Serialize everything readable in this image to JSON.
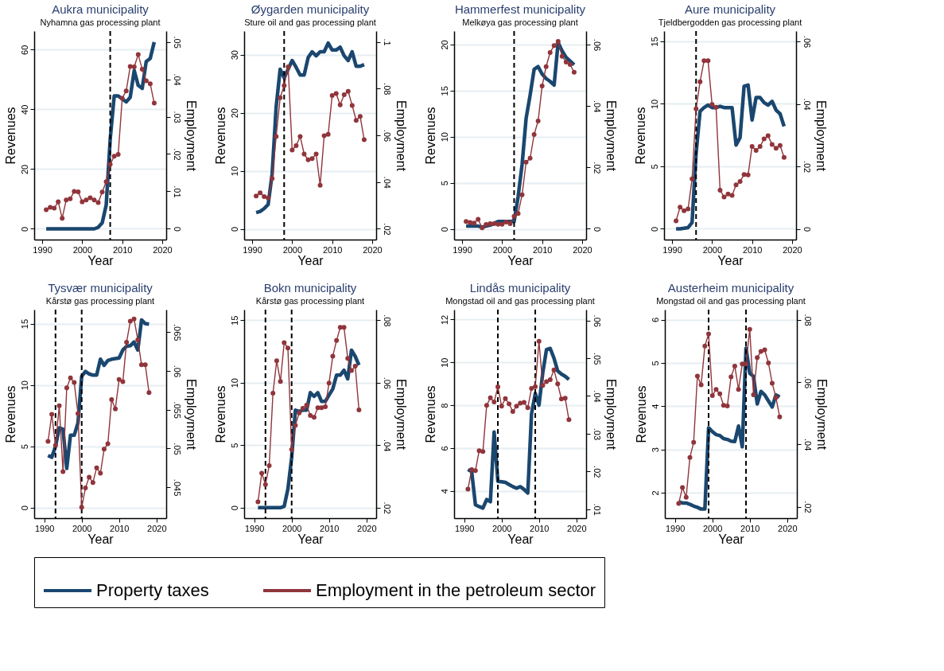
{
  "chart_data": [
    {
      "type": "line",
      "title": "Aukra municipality",
      "subtitle": "Nyhamna gas processing plant",
      "xlabel": "Year",
      "ylabel": "Revenues",
      "y2label": "Employment",
      "x": [
        1991,
        1992,
        1993,
        1994,
        1995,
        1996,
        1997,
        1998,
        1999,
        2000,
        2001,
        2002,
        2003,
        2004,
        2005,
        2006,
        2007,
        2008,
        2009,
        2010,
        2011,
        2012,
        2013,
        2014,
        2015,
        2016,
        2017,
        2018
      ],
      "xlim": [
        1988,
        2021
      ],
      "xticks": [
        1990,
        2000,
        2010,
        2020
      ],
      "ylim": [
        -3.6,
        66.2
      ],
      "yticks": [
        0,
        20,
        40,
        60
      ],
      "y2lim": [
        -0.0029,
        0.0529
      ],
      "y2ticks": [
        0,
        {
          "value": 0.01,
          "label": ".01"
        },
        {
          "value": 0.02,
          "label": ".02"
        },
        {
          "value": 0.03,
          "label": ".03"
        },
        {
          "value": 0.04,
          "label": ".04"
        },
        {
          "value": 0.05,
          "label": ".05"
        }
      ],
      "grid": "y",
      "legend": "bottom",
      "ref_lines": [
        {
          "axis": "x",
          "value": 2007,
          "line_style": "dashed"
        }
      ],
      "series": [
        {
          "name": "Property taxes",
          "color": "#1a476f",
          "marker": "none",
          "values": [
            0,
            0,
            0,
            0,
            0,
            0,
            0,
            0,
            0,
            0,
            0,
            0,
            0,
            0.5,
            2,
            8,
            30,
            44.5,
            44.5,
            43.5,
            42.5,
            44,
            53,
            48,
            47,
            56,
            57,
            62.5
          ]
        },
        {
          "name": "Employment in the petroleum sector",
          "color": "#90353b",
          "marker": "circle",
          "axis": "y2",
          "values": [
            0.0051,
            0.0057,
            0.0055,
            0.0072,
            0.0028,
            0.0077,
            0.008,
            0.01,
            0.0099,
            0.0072,
            0.0077,
            0.0083,
            0.0077,
            0.007,
            0.0098,
            0.0126,
            0.0172,
            0.0194,
            0.0199,
            0.0349,
            0.0369,
            0.0434,
            0.0433,
            0.0466,
            0.0427,
            0.0396,
            0.0388,
            0.0336
          ]
        }
      ]
    },
    {
      "type": "line",
      "title": "Øygarden municipality",
      "subtitle": "Sture oil and gas processing plant",
      "xlabel": "Year",
      "ylabel": "Revenues",
      "y2label": "Employment",
      "x": [
        1991,
        1992,
        1993,
        1994,
        1995,
        1996,
        1997,
        1998,
        1999,
        2000,
        2001,
        2002,
        2003,
        2004,
        2005,
        2006,
        2007,
        2008,
        2009,
        2010,
        2011,
        2012,
        2013,
        2014,
        2015,
        2016,
        2017,
        2018
      ],
      "xlim": [
        1988,
        2021
      ],
      "xticks": [
        1990,
        2000,
        2010,
        2020
      ],
      "ylim": [
        -1.85,
        34.07
      ],
      "yticks": [
        0,
        10,
        20,
        30
      ],
      "y2lim": [
        0.0154,
        0.1046
      ],
      "y2ticks": [
        {
          "value": 0.02,
          "label": ".02"
        },
        {
          "value": 0.04,
          "label": ".04"
        },
        {
          "value": 0.06,
          "label": ".06"
        },
        {
          "value": 0.08,
          "label": ".08"
        },
        {
          "value": 0.1,
          "label": ".1"
        }
      ],
      "grid": "y",
      "legend": "bottom",
      "ref_lines": [
        {
          "axis": "x",
          "value": 1998,
          "line_style": "dashed"
        }
      ],
      "series": [
        {
          "name": "Property taxes",
          "color": "#1a476f",
          "marker": "none",
          "values": [
            2.8,
            3.0,
            3.5,
            4.2,
            9.5,
            21,
            27.5,
            26,
            27.5,
            29,
            27.8,
            26.5,
            26.5,
            29.5,
            30.5,
            29.8,
            30.5,
            30.5,
            32,
            30.8,
            30.8,
            31.3,
            29.8,
            29,
            30.5,
            28,
            28,
            28.3
          ]
        },
        {
          "name": "Employment in the petroleum sector",
          "color": "#90353b",
          "marker": "circle",
          "axis": "y2",
          "values": [
            0.034,
            0.0354,
            0.0338,
            0.0332,
            0.0415,
            0.0595,
            0.0761,
            0.0813,
            0.0893,
            0.0537,
            0.0556,
            0.0595,
            0.052,
            0.0495,
            0.05,
            0.052,
            0.0386,
            0.0598,
            0.0604,
            0.077,
            0.0779,
            0.073,
            0.0774,
            0.0788,
            0.0728,
            0.0664,
            0.0681,
            0.0581
          ]
        }
      ]
    },
    {
      "type": "line",
      "title": "Hammerfest municipality",
      "subtitle": "Melkøya gas processing plant",
      "xlabel": "Year",
      "ylabel": "Revenues",
      "y2label": "Employment",
      "x": [
        1991,
        1992,
        1993,
        1994,
        1995,
        1996,
        1997,
        1998,
        1999,
        2000,
        2001,
        2002,
        2003,
        2004,
        2005,
        2006,
        2007,
        2008,
        2009,
        2010,
        2011,
        2012,
        2013,
        2014,
        2015,
        2016,
        2017,
        2018
      ],
      "xlim": [
        1988,
        2021
      ],
      "xticks": [
        1990,
        2000,
        2010,
        2020
      ],
      "ylim": [
        -1.16,
        21.46
      ],
      "yticks": [
        0,
        5,
        10,
        15,
        20
      ],
      "y2lim": [
        -0.0035,
        0.0644
      ],
      "y2ticks": [
        0,
        {
          "value": 0.02,
          "label": ".02"
        },
        {
          "value": 0.04,
          "label": ".04"
        },
        {
          "value": 0.06,
          "label": ".06"
        }
      ],
      "grid": "y",
      "legend": "bottom",
      "ref_lines": [
        {
          "axis": "x",
          "value": 2003,
          "line_style": "dashed"
        }
      ],
      "series": [
        {
          "name": "Property taxes",
          "color": "#1a476f",
          "marker": "none",
          "values": [
            0.3,
            0.3,
            0.3,
            0.3,
            0.2,
            0.3,
            0.4,
            0.6,
            0.8,
            0.8,
            0.8,
            0.8,
            0.8,
            3.5,
            7,
            12,
            14.5,
            17.3,
            17.6,
            16.8,
            16.3,
            16,
            15.6,
            20.2,
            19.3,
            18.6,
            18.2,
            17.8
          ]
        },
        {
          "name": "Employment in the petroleum sector",
          "color": "#90353b",
          "marker": "circle",
          "axis": "y2",
          "values": [
            0.0024,
            0.0021,
            0.0019,
            0.0031,
            0.0003,
            0.0014,
            0.0017,
            0.0017,
            0.0015,
            0.0015,
            0.0022,
            0.0017,
            0.0041,
            0.005,
            0.0111,
            0.0217,
            0.023,
            0.0307,
            0.0351,
            0.0465,
            0.0528,
            0.0574,
            0.0597,
            0.061,
            0.0562,
            0.0543,
            0.0535,
            0.051
          ]
        }
      ]
    },
    {
      "type": "line",
      "title": "Aure municipality",
      "subtitle": "Tjeldbergodden gas processing plant",
      "xlabel": "Year",
      "ylabel": "Revenues",
      "y2label": "Employment",
      "x": [
        1991,
        1992,
        1993,
        1994,
        1995,
        1996,
        1997,
        1998,
        1999,
        2000,
        2001,
        2002,
        2003,
        2004,
        2005,
        2006,
        2007,
        2008,
        2009,
        2010,
        2011,
        2012,
        2013,
        2014,
        2015,
        2016,
        2017,
        2018
      ],
      "xlim": [
        1988,
        2021
      ],
      "xticks": [
        1990,
        2000,
        2010,
        2020
      ],
      "ylim": [
        -0.86,
        15.82
      ],
      "yticks": [
        0,
        5,
        10,
        15
      ],
      "y2lim": [
        -0.0034,
        0.0633
      ],
      "y2ticks": [
        0,
        {
          "value": 0.02,
          "label": ".02"
        },
        {
          "value": 0.04,
          "label": ".04"
        },
        {
          "value": 0.06,
          "label": ".06"
        }
      ],
      "grid": "y",
      "legend": "bottom",
      "ref_lines": [
        {
          "axis": "x",
          "value": 1996,
          "line_style": "dashed"
        }
      ],
      "series": [
        {
          "name": "Property taxes",
          "color": "#1a476f",
          "marker": "none",
          "values": [
            0,
            0,
            0.05,
            0.1,
            0.5,
            6,
            9.4,
            9.7,
            9.9,
            9.7,
            9.7,
            9.8,
            9.7,
            9.7,
            9.7,
            6.7,
            7.3,
            11.4,
            11.5,
            8.7,
            10.5,
            10.5,
            10.1,
            9.9,
            10.2,
            9.5,
            9.2,
            8.2
          ]
        },
        {
          "name": "Employment in the petroleum sector",
          "color": "#90353b",
          "marker": "circle",
          "axis": "y2",
          "values": [
            0.0026,
            0.007,
            0.0058,
            0.0064,
            0.016,
            0.0384,
            0.0471,
            0.0538,
            0.0538,
            0.0398,
            0.0389,
            0.0124,
            0.0102,
            0.0112,
            0.0107,
            0.0141,
            0.0152,
            0.0174,
            0.0173,
            0.0264,
            0.0251,
            0.0264,
            0.0288,
            0.0298,
            0.027,
            0.0258,
            0.0267,
            0.0229
          ]
        }
      ]
    },
    {
      "type": "line",
      "title": "Tysvær municipality",
      "subtitle": "Kårstø gas processing plant",
      "xlabel": "Year",
      "ylabel": "Revenues",
      "y2label": "Employment",
      "x": [
        1991,
        1992,
        1993,
        1994,
        1995,
        1996,
        1997,
        1998,
        1999,
        2000,
        2001,
        2002,
        2003,
        2004,
        2005,
        2006,
        2007,
        2008,
        2009,
        2010,
        2011,
        2012,
        2013,
        2014,
        2015,
        2016,
        2017,
        2018
      ],
      "xlim": [
        1987.3,
        2022.6
      ],
      "xticks": [
        1990,
        2000,
        2010,
        2020
      ],
      "ylim": [
        -0.86,
        16.14
      ],
      "yticks": [
        0,
        5,
        10,
        15
      ],
      "y2lim": [
        0.041,
        0.0679
      ],
      "y2ticks": [
        {
          "value": 0.045,
          "label": ".045"
        },
        {
          "value": 0.05,
          "label": ".05"
        },
        {
          "value": 0.055,
          "label": ".055"
        },
        {
          "value": 0.06,
          "label": ".06"
        },
        {
          "value": 0.065,
          "label": ".065"
        }
      ],
      "grid": "y",
      "legend": "bottom",
      "ref_lines": [
        {
          "axis": "x",
          "value": 1993,
          "line_style": "dashed"
        },
        {
          "axis": "x",
          "value": 2000,
          "line_style": "dashed"
        }
      ],
      "series": [
        {
          "name": "Property taxes",
          "color": "#1a476f",
          "marker": "none",
          "values": [
            4.25,
            4.1,
            5,
            6.5,
            6.4,
            3.2,
            5.9,
            5.9,
            6.9,
            10.7,
            11.1,
            10.9,
            10.8,
            10.8,
            12.1,
            11.6,
            12,
            12.1,
            12.15,
            12.2,
            12.85,
            13.15,
            13.2,
            13.5,
            12.85,
            15.3,
            15,
            14.95
          ]
        },
        {
          "name": "Employment in the petroleum sector",
          "color": "#90353b",
          "marker": "circle",
          "axis": "y2",
          "values": [
            0.0509,
            0.0544,
            0.0504,
            0.0555,
            0.047,
            0.0578,
            0.0591,
            0.0585,
            0.0545,
            0.0424,
            0.0449,
            0.0463,
            0.0456,
            0.0475,
            0.0468,
            0.0499,
            0.0506,
            0.0563,
            0.0551,
            0.0589,
            0.0586,
            0.0637,
            0.0664,
            0.0667,
            0.064,
            0.0608,
            0.0608,
            0.0572
          ]
        }
      ]
    },
    {
      "type": "line",
      "title": "Bokn municipality",
      "subtitle": "Kårstø gas processing plant",
      "xlabel": "Year",
      "ylabel": "Revenues",
      "y2label": "Employment",
      "x": [
        1991,
        1992,
        1993,
        1994,
        1995,
        1996,
        1997,
        1998,
        1999,
        2000,
        2001,
        2002,
        2003,
        2004,
        2005,
        2006,
        2007,
        2008,
        2009,
        2010,
        2011,
        2012,
        2013,
        2014,
        2015,
        2016,
        2017,
        2018
      ],
      "xlim": [
        1987.3,
        2022.6
      ],
      "xticks": [
        1990,
        2000,
        2010,
        2020
      ],
      "ylim": [
        -0.84,
        15.84
      ],
      "yticks": [
        0,
        5,
        10,
        15
      ],
      "y2lim": [
        0.0166,
        0.0834
      ],
      "y2ticks": [
        {
          "value": 0.02,
          "label": ".02"
        },
        {
          "value": 0.04,
          "label": ".04"
        },
        {
          "value": 0.06,
          "label": ".06"
        },
        {
          "value": 0.08,
          "label": ".08"
        }
      ],
      "grid": "y",
      "legend": "bottom",
      "ref_lines": [
        {
          "axis": "x",
          "value": 1993,
          "line_style": "dashed"
        },
        {
          "axis": "x",
          "value": 2000,
          "line_style": "dashed"
        }
      ],
      "series": [
        {
          "name": "Property taxes",
          "color": "#1a476f",
          "marker": "none",
          "values": [
            0,
            0,
            0,
            0,
            0,
            0,
            0,
            0.1,
            1.5,
            4,
            7.8,
            7.7,
            7.8,
            7.8,
            9.2,
            8.9,
            9.2,
            8.5,
            8.5,
            9,
            9.5,
            10.6,
            10.6,
            11,
            10.3,
            12.6,
            12.1,
            11.4
          ]
        },
        {
          "name": "Employment in the petroleum sector",
          "color": "#90353b",
          "marker": "circle",
          "axis": "y2",
          "values": [
            0.0218,
            0.031,
            0.0274,
            0.0334,
            0.0566,
            0.067,
            0.0604,
            0.0728,
            0.0711,
            0.0386,
            0.0463,
            0.0503,
            0.0518,
            0.0528,
            0.0495,
            0.0489,
            0.052,
            0.052,
            0.0523,
            0.0599,
            0.0685,
            0.0735,
            0.0777,
            0.0777,
            0.0678,
            0.0639,
            0.0653,
            0.0513
          ]
        }
      ]
    },
    {
      "type": "line",
      "title": "Lindås municipality",
      "subtitle": "Mongstad oil and gas processing plant",
      "xlabel": "Year",
      "ylabel": "Revenues",
      "y2label": "Employment",
      "x": [
        1991,
        1992,
        1993,
        1994,
        1995,
        1996,
        1997,
        1998,
        1999,
        2000,
        2001,
        2002,
        2003,
        2004,
        2005,
        2006,
        2007,
        2008,
        2009,
        2010,
        2011,
        2012,
        2013,
        2014,
        2015,
        2016,
        2017,
        2018
      ],
      "xlim": [
        1987.3,
        2022.6
      ],
      "xticks": [
        1990,
        2000,
        2010,
        2020
      ],
      "ylim": [
        2.73,
        12.46
      ],
      "yticks": [
        4,
        6,
        8,
        10,
        12
      ],
      "y2lim": [
        0.0076,
        0.0629
      ],
      "y2ticks": [
        {
          "value": 0.01,
          "label": ".01"
        },
        {
          "value": 0.02,
          "label": ".02"
        },
        {
          "value": 0.03,
          "label": ".03"
        },
        {
          "value": 0.04,
          "label": ".04"
        },
        {
          "value": 0.05,
          "label": ".05"
        },
        {
          "value": 0.06,
          "label": ".06"
        }
      ],
      "grid": "y",
      "legend": "bottom",
      "ref_lines": [
        {
          "axis": "x",
          "value": 1999,
          "line_style": "dashed"
        },
        {
          "axis": "x",
          "value": 2009,
          "line_style": "dashed"
        }
      ],
      "series": [
        {
          "name": "Property taxes",
          "color": "#1a476f",
          "marker": "none",
          "values": [
            5.0,
            4.9,
            3.35,
            3.27,
            3.2,
            3.6,
            3.5,
            6.75,
            4.45,
            4.43,
            4.4,
            4.3,
            4.2,
            4.13,
            4.2,
            4.07,
            3.9,
            7.6,
            8.55,
            8,
            9.5,
            10.6,
            10.65,
            10.2,
            9.6,
            9.45,
            9.35,
            9.2
          ]
        },
        {
          "name": "Employment in the petroleum sector",
          "color": "#90353b",
          "marker": "circle",
          "axis": "y2",
          "values": [
            0.0153,
            0.0205,
            0.0202,
            0.0255,
            0.0253,
            0.0375,
            0.0395,
            0.0384,
            0.0424,
            0.0373,
            0.0393,
            0.0379,
            0.0359,
            0.0373,
            0.0381,
            0.0383,
            0.0369,
            0.042,
            0.0425,
            0.0545,
            0.0428,
            0.0438,
            0.0443,
            0.0469,
            0.0432,
            0.0392,
            0.0394,
            0.0337
          ]
        }
      ]
    },
    {
      "type": "line",
      "title": "Austerheim municipality",
      "subtitle": "Mongstad oil and gas processing plant",
      "xlabel": "Year",
      "ylabel": "Revenues",
      "y2label": "Employment",
      "x": [
        1991,
        1992,
        1993,
        1994,
        1995,
        1996,
        1997,
        1998,
        1999,
        2000,
        2001,
        2002,
        2003,
        2004,
        2005,
        2006,
        2007,
        2008,
        2009,
        2010,
        2011,
        2012,
        2013,
        2014,
        2015,
        2016,
        2017,
        2018
      ],
      "xlim": [
        1987.3,
        2022.6
      ],
      "xticks": [
        1990,
        2000,
        2010,
        2020
      ],
      "ylim": [
        1.41,
        6.23
      ],
      "yticks": [
        2,
        3,
        4,
        5,
        6
      ],
      "y2lim": [
        0.0163,
        0.0832
      ],
      "y2ticks": [
        {
          "value": 0.02,
          "label": ".02"
        },
        {
          "value": 0.04,
          "label": ".04"
        },
        {
          "value": 0.06,
          "label": ".06"
        },
        {
          "value": 0.08,
          "label": ".08"
        }
      ],
      "grid": "y",
      "legend": "bottom",
      "ref_lines": [
        {
          "axis": "x",
          "value": 1999,
          "line_style": "dashed"
        },
        {
          "axis": "x",
          "value": 2009,
          "line_style": "dashed"
        }
      ],
      "series": [
        {
          "name": "Property taxes",
          "color": "#1a476f",
          "marker": "none",
          "values": [
            1.79,
            1.76,
            1.76,
            1.73,
            1.69,
            1.66,
            1.62,
            1.62,
            3.5,
            3.41,
            3.34,
            3.32,
            3.25,
            3.23,
            3.19,
            3.18,
            3.54,
            3.06,
            5.34,
            4.76,
            4.69,
            4.05,
            4.34,
            4.26,
            4.12,
            3.98,
            4.26,
            4.21
          ]
        },
        {
          "name": "Employment in the petroleum sector",
          "color": "#90353b",
          "marker": "circle",
          "axis": "y2",
          "values": [
            0.021,
            0.0261,
            0.023,
            0.0358,
            0.0406,
            0.0619,
            0.0591,
            0.0715,
            0.0754,
            0.0556,
            0.0576,
            0.0562,
            0.0525,
            0.0523,
            0.0616,
            0.0651,
            0.0576,
            0.0658,
            0.0658,
            0.0769,
            0.0559,
            0.0678,
            0.0698,
            0.0703,
            0.0661,
            0.0596,
            0.055,
            0.0488
          ]
        }
      ]
    }
  ]
}
